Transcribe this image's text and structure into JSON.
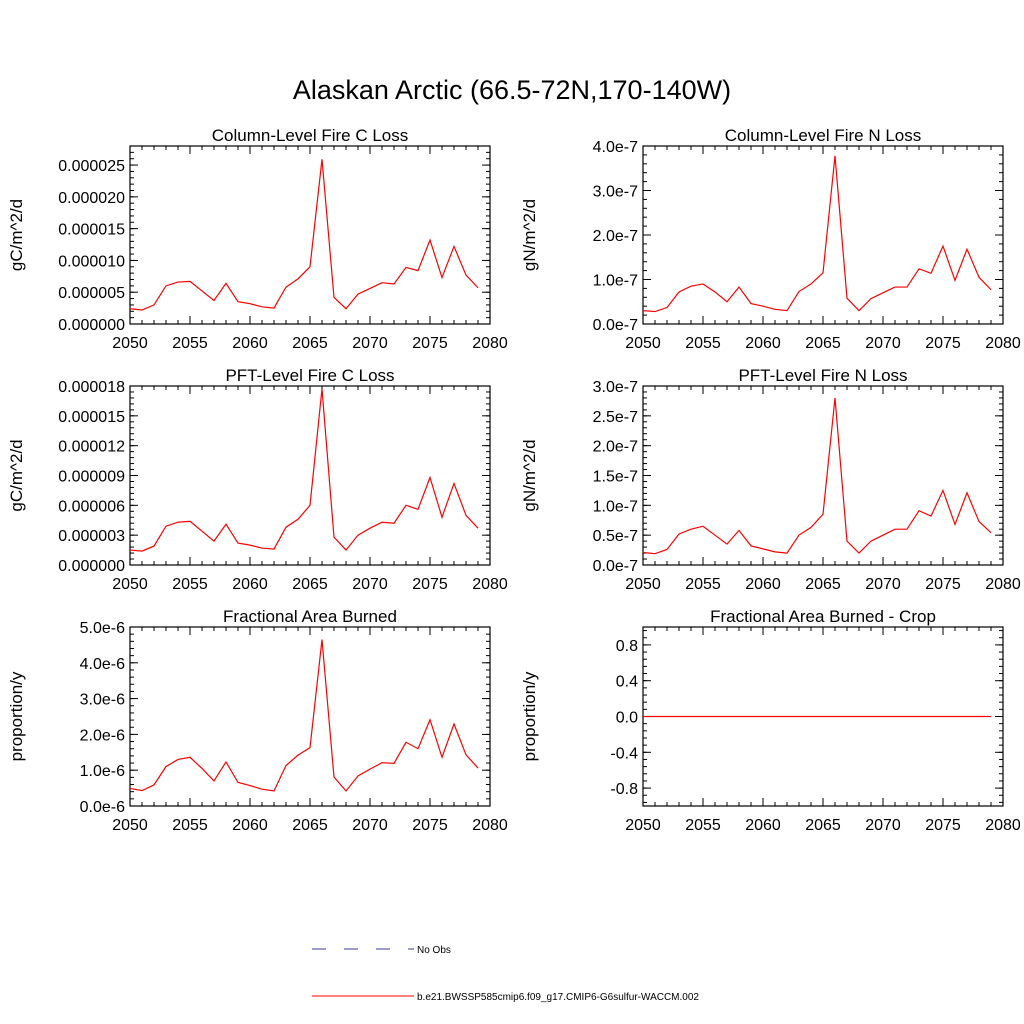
{
  "page_title": "Alaskan Arctic (66.5-72N,170-140W)",
  "colors": {
    "model_line": "#ff0000",
    "obs_line": "#3a3aaa",
    "frame": "#000000"
  },
  "legend": {
    "obs_label": "No Obs",
    "model_label": "b.e21.BWSSP585cmip6.f09_g17.CMIP6-G6sulfur-WACCM.002"
  },
  "chart_data": [
    {
      "type": "line",
      "title": "Column-Level Fire C Loss",
      "ylabel": "gC/m^2/d",
      "xlim": [
        2050,
        2080
      ],
      "ylim": [
        0,
        2.8e-05
      ],
      "x_ticks": [
        "2050",
        "2055",
        "2060",
        "2065",
        "2070",
        "2075",
        "2080"
      ],
      "y_ticks": [
        {
          "value": 0,
          "label": "0.000000"
        },
        {
          "value": 5e-06,
          "label": "0.000005"
        },
        {
          "value": 1e-05,
          "label": "0.000010"
        },
        {
          "value": 1.5e-05,
          "label": "0.000015"
        },
        {
          "value": 2e-05,
          "label": "0.000020"
        },
        {
          "value": 2.5e-05,
          "label": "0.000025"
        }
      ],
      "x": [
        2050,
        2051,
        2052,
        2053,
        2054,
        2055,
        2056,
        2057,
        2058,
        2059,
        2060,
        2061,
        2062,
        2063,
        2064,
        2065,
        2066,
        2067,
        2068,
        2069,
        2070,
        2071,
        2072,
        2073,
        2074,
        2075,
        2076,
        2077,
        2078,
        2079
      ],
      "series": [
        {
          "values": [
            2.4e-06,
            2.2e-06,
            3e-06,
            6e-06,
            6.6e-06,
            6.7e-06,
            5.2e-06,
            3.7e-06,
            6.4e-06,
            3.5e-06,
            3.2e-06,
            2.7e-06,
            2.5e-06,
            5.8e-06,
            7.1e-06,
            9e-06,
            2.59e-05,
            4.2e-06,
            2.4e-06,
            4.7e-06,
            5.6e-06,
            6.5e-06,
            6.3e-06,
            8.9e-06,
            8.4e-06,
            1.32e-05,
            7.3e-06,
            1.22e-05,
            7.7e-06,
            5.7e-06
          ]
        }
      ]
    },
    {
      "type": "line",
      "title": "Column-Level Fire N Loss",
      "ylabel": "gN/m^2/d",
      "xlim": [
        2050,
        2080
      ],
      "ylim": [
        0,
        4e-07
      ],
      "x_ticks": [
        "2050",
        "2055",
        "2060",
        "2065",
        "2070",
        "2075",
        "2080"
      ],
      "y_ticks": [
        {
          "value": 0,
          "label": "0.0e-7"
        },
        {
          "value": 1e-07,
          "label": "1.0e-7"
        },
        {
          "value": 2e-07,
          "label": "2.0e-7"
        },
        {
          "value": 3e-07,
          "label": "3.0e-7"
        },
        {
          "value": 4e-07,
          "label": "4.0e-7"
        }
      ],
      "x": [
        2050,
        2051,
        2052,
        2053,
        2054,
        2055,
        2056,
        2057,
        2058,
        2059,
        2060,
        2061,
        2062,
        2063,
        2064,
        2065,
        2066,
        2067,
        2068,
        2069,
        2070,
        2071,
        2072,
        2073,
        2074,
        2075,
        2076,
        2077,
        2078,
        2079
      ],
      "series": [
        {
          "values": [
            3e-08,
            2.8e-08,
            3.7e-08,
            7.2e-08,
            8.5e-08,
            9e-08,
            7.2e-08,
            5e-08,
            8.3e-08,
            4.6e-08,
            4e-08,
            3.3e-08,
            3e-08,
            7.3e-08,
            9e-08,
            1.15e-07,
            3.78e-07,
            5.8e-08,
            3e-08,
            5.7e-08,
            7e-08,
            8.3e-08,
            8.3e-08,
            1.24e-07,
            1.14e-07,
            1.75e-07,
            9.8e-08,
            1.68e-07,
            1.05e-07,
            7.7e-08
          ]
        }
      ]
    },
    {
      "type": "line",
      "title": "PFT-Level Fire C Loss",
      "ylabel": "gC/m^2/d",
      "xlim": [
        2050,
        2080
      ],
      "ylim": [
        0,
        1.8e-05
      ],
      "x_ticks": [
        "2050",
        "2055",
        "2060",
        "2065",
        "2070",
        "2075",
        "2080"
      ],
      "y_ticks": [
        {
          "value": 0,
          "label": "0.000000"
        },
        {
          "value": 3e-06,
          "label": "0.000003"
        },
        {
          "value": 6e-06,
          "label": "0.000006"
        },
        {
          "value": 9e-06,
          "label": "0.000009"
        },
        {
          "value": 1.2e-05,
          "label": "0.000012"
        },
        {
          "value": 1.5e-05,
          "label": "0.000015"
        },
        {
          "value": 1.8e-05,
          "label": "0.000018"
        }
      ],
      "x": [
        2050,
        2051,
        2052,
        2053,
        2054,
        2055,
        2056,
        2057,
        2058,
        2059,
        2060,
        2061,
        2062,
        2063,
        2064,
        2065,
        2066,
        2067,
        2068,
        2069,
        2070,
        2071,
        2072,
        2073,
        2074,
        2075,
        2076,
        2077,
        2078,
        2079
      ],
      "series": [
        {
          "values": [
            1.5e-06,
            1.4e-06,
            1.9e-06,
            3.9e-06,
            4.3e-06,
            4.4e-06,
            3.4e-06,
            2.4e-06,
            4.1e-06,
            2.2e-06,
            2e-06,
            1.7e-06,
            1.6e-06,
            3.8e-06,
            4.6e-06,
            6e-06,
            1.77e-05,
            2.8e-06,
            1.5e-06,
            3e-06,
            3.7e-06,
            4.3e-06,
            4.2e-06,
            6e-06,
            5.6e-06,
            8.8e-06,
            4.8e-06,
            8.2e-06,
            5e-06,
            3.7e-06
          ]
        }
      ]
    },
    {
      "type": "line",
      "title": "PFT-Level Fire N Loss",
      "ylabel": "gN/m^2/d",
      "xlim": [
        2050,
        2080
      ],
      "ylim": [
        0,
        3e-07
      ],
      "x_ticks": [
        "2050",
        "2055",
        "2060",
        "2065",
        "2070",
        "2075",
        "2080"
      ],
      "y_ticks": [
        {
          "value": 0,
          "label": "0.0e-7"
        },
        {
          "value": 5e-08,
          "label": "0.5e-7"
        },
        {
          "value": 1e-07,
          "label": "1.0e-7"
        },
        {
          "value": 1.5e-07,
          "label": "1.5e-7"
        },
        {
          "value": 2e-07,
          "label": "2.0e-7"
        },
        {
          "value": 2.5e-07,
          "label": "2.5e-7"
        },
        {
          "value": 3e-07,
          "label": "3.0e-7"
        }
      ],
      "x": [
        2050,
        2051,
        2052,
        2053,
        2054,
        2055,
        2056,
        2057,
        2058,
        2059,
        2060,
        2061,
        2062,
        2063,
        2064,
        2065,
        2066,
        2067,
        2068,
        2069,
        2070,
        2071,
        2072,
        2073,
        2074,
        2075,
        2076,
        2077,
        2078,
        2079
      ],
      "series": [
        {
          "values": [
            2.1e-08,
            1.9e-08,
            2.6e-08,
            5.2e-08,
            6e-08,
            6.5e-08,
            5e-08,
            3.5e-08,
            5.8e-08,
            3.2e-08,
            2.7e-08,
            2.2e-08,
            2e-08,
            5e-08,
            6.3e-08,
            8.5e-08,
            2.8e-07,
            4e-08,
            2e-08,
            4e-08,
            5e-08,
            6e-08,
            6e-08,
            9.1e-08,
            8.2e-08,
            1.25e-07,
            6.8e-08,
            1.21e-07,
            7.3e-08,
            5.4e-08
          ]
        }
      ]
    },
    {
      "type": "line",
      "title": "Fractional Area Burned",
      "ylabel": "proportion/y",
      "xlim": [
        2050,
        2080
      ],
      "ylim": [
        0,
        5e-06
      ],
      "x_ticks": [
        "2050",
        "2055",
        "2060",
        "2065",
        "2070",
        "2075",
        "2080"
      ],
      "y_ticks": [
        {
          "value": 0,
          "label": "0.0e-6"
        },
        {
          "value": 1e-06,
          "label": "1.0e-6"
        },
        {
          "value": 2e-06,
          "label": "2.0e-6"
        },
        {
          "value": 3e-06,
          "label": "3.0e-6"
        },
        {
          "value": 4e-06,
          "label": "4.0e-6"
        },
        {
          "value": 5e-06,
          "label": "5.0e-6"
        }
      ],
      "x": [
        2050,
        2051,
        2052,
        2053,
        2054,
        2055,
        2056,
        2057,
        2058,
        2059,
        2060,
        2061,
        2062,
        2063,
        2064,
        2065,
        2066,
        2067,
        2068,
        2069,
        2070,
        2071,
        2072,
        2073,
        2074,
        2075,
        2076,
        2077,
        2078,
        2079
      ],
      "series": [
        {
          "values": [
            4.9e-07,
            4.3e-07,
            5.9e-07,
            1.1e-06,
            1.3e-06,
            1.36e-06,
            1.05e-06,
            7e-07,
            1.23e-06,
            6.6e-07,
            5.7e-07,
            4.7e-07,
            4.2e-07,
            1.13e-06,
            1.42e-06,
            1.63e-06,
            4.65e-06,
            8.1e-07,
            4.2e-07,
            8.4e-07,
            1.03e-06,
            1.21e-06,
            1.19e-06,
            1.78e-06,
            1.6e-06,
            2.41e-06,
            1.36e-06,
            2.29e-06,
            1.43e-06,
            1.06e-06
          ]
        }
      ]
    },
    {
      "type": "line",
      "title": "Fractional Area Burned - Crop",
      "ylabel": "proportion/y",
      "xlim": [
        2050,
        2080
      ],
      "ylim": [
        -1,
        1
      ],
      "x_ticks": [
        "2050",
        "2055",
        "2060",
        "2065",
        "2070",
        "2075",
        "2080"
      ],
      "y_ticks": [
        {
          "value": -0.8,
          "label": "-0.8"
        },
        {
          "value": -0.4,
          "label": "-0.4"
        },
        {
          "value": 0,
          "label": "0.0"
        },
        {
          "value": 0.4,
          "label": "0.4"
        },
        {
          "value": 0.8,
          "label": "0.8"
        }
      ],
      "x": [
        2050,
        2051,
        2052,
        2053,
        2054,
        2055,
        2056,
        2057,
        2058,
        2059,
        2060,
        2061,
        2062,
        2063,
        2064,
        2065,
        2066,
        2067,
        2068,
        2069,
        2070,
        2071,
        2072,
        2073,
        2074,
        2075,
        2076,
        2077,
        2078,
        2079
      ],
      "series": [
        {
          "values": [
            0,
            0,
            0,
            0,
            0,
            0,
            0,
            0,
            0,
            0,
            0,
            0,
            0,
            0,
            0,
            0,
            0,
            0,
            0,
            0,
            0,
            0,
            0,
            0,
            0,
            0,
            0,
            0,
            0,
            0
          ]
        }
      ]
    }
  ]
}
